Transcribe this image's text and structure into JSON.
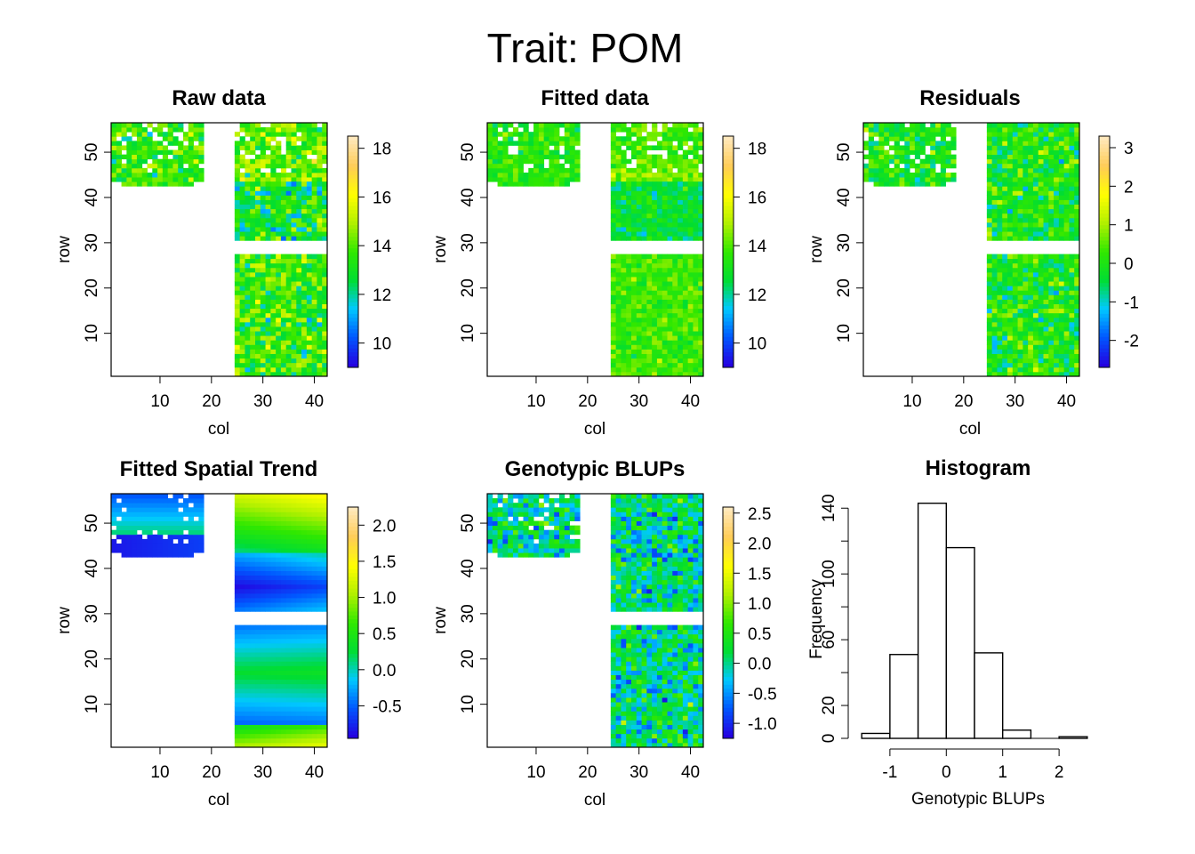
{
  "figure": {
    "title": "Trait: POM"
  },
  "chart_data": [
    {
      "type": "heatmap",
      "title": "Raw data",
      "xlabel": "col",
      "ylabel": "row",
      "xlim": [
        1,
        42
      ],
      "ylim": [
        1,
        56
      ],
      "xticks": [
        "10",
        "20",
        "30",
        "40"
      ],
      "yticks": [
        "10",
        "20",
        "30",
        "40",
        "50"
      ],
      "colorbar": {
        "range": [
          9,
          18.5
        ],
        "ticks": [
          "10",
          "12",
          "14",
          "16",
          "18"
        ],
        "tick_values": [
          10,
          12,
          14,
          16,
          18
        ]
      },
      "blocks": [
        {
          "cols": [
            1,
            18
          ],
          "rows": [
            43,
            56
          ],
          "base": 13.6,
          "trend": 0.0,
          "noise": 0.9
        },
        {
          "cols": [
            25,
            42
          ],
          "rows": [
            44,
            56
          ],
          "base": 14.3,
          "trend": 0.3,
          "noise": 1.0
        },
        {
          "cols": [
            25,
            42
          ],
          "rows": [
            31,
            43
          ],
          "base": 12.8,
          "trend": 0.0,
          "noise": 1.2
        },
        {
          "cols": [
            25,
            42
          ],
          "rows": [
            1,
            27
          ],
          "base": 13.7,
          "trend": 0.0,
          "noise": 1.1
        }
      ]
    },
    {
      "type": "heatmap",
      "title": "Fitted data",
      "xlabel": "col",
      "ylabel": "row",
      "xlim": [
        1,
        42
      ],
      "ylim": [
        1,
        56
      ],
      "xticks": [
        "10",
        "20",
        "30",
        "40"
      ],
      "yticks": [
        "10",
        "20",
        "30",
        "40",
        "50"
      ],
      "colorbar": {
        "range": [
          9,
          18.5
        ],
        "ticks": [
          "10",
          "12",
          "14",
          "16",
          "18"
        ],
        "tick_values": [
          10,
          12,
          14,
          16,
          18
        ]
      },
      "blocks": [
        {
          "cols": [
            1,
            18
          ],
          "rows": [
            43,
            56
          ],
          "base": 13.5,
          "trend": 0.0,
          "noise": 0.6
        },
        {
          "cols": [
            25,
            42
          ],
          "rows": [
            44,
            56
          ],
          "base": 14.2,
          "trend": 0.4,
          "noise": 0.6
        },
        {
          "cols": [
            25,
            42
          ],
          "rows": [
            31,
            43
          ],
          "base": 12.7,
          "trend": 0.0,
          "noise": 0.6
        },
        {
          "cols": [
            25,
            42
          ],
          "rows": [
            1,
            27
          ],
          "base": 13.8,
          "trend": 0.0,
          "noise": 0.6
        }
      ]
    },
    {
      "type": "heatmap",
      "title": "Residuals",
      "xlabel": "col",
      "ylabel": "row",
      "xlim": [
        1,
        42
      ],
      "ylim": [
        1,
        56
      ],
      "xticks": [
        "10",
        "20",
        "30",
        "40"
      ],
      "yticks": [
        "10",
        "20",
        "30",
        "40",
        "50"
      ],
      "colorbar": {
        "range": [
          -2.7,
          3.3
        ],
        "ticks": [
          "-2",
          "-1",
          "0",
          "1",
          "2",
          "3"
        ],
        "tick_values": [
          -2,
          -1,
          0,
          1,
          2,
          3
        ]
      },
      "blocks": [
        {
          "cols": [
            1,
            18
          ],
          "rows": [
            43,
            56
          ],
          "base": 0.0,
          "trend": 0.0,
          "noise": 0.55
        },
        {
          "cols": [
            25,
            42
          ],
          "rows": [
            31,
            56
          ],
          "base": 0.0,
          "trend": 0.0,
          "noise": 0.6
        },
        {
          "cols": [
            25,
            42
          ],
          "rows": [
            1,
            27
          ],
          "base": 0.0,
          "trend": 0.0,
          "noise": 0.6
        }
      ]
    },
    {
      "type": "heatmap",
      "title": "Fitted Spatial Trend",
      "xlabel": "col",
      "ylabel": "row",
      "xlim": [
        1,
        42
      ],
      "ylim": [
        1,
        56
      ],
      "xticks": [
        "10",
        "20",
        "30",
        "40"
      ],
      "yticks": [
        "10",
        "20",
        "30",
        "40",
        "50"
      ],
      "colorbar": {
        "range": [
          -0.95,
          2.25
        ],
        "ticks": [
          "-0.5",
          "0.0",
          "0.5",
          "1.0",
          "1.5",
          "2.0"
        ],
        "tick_values": [
          -0.5,
          0,
          0.5,
          1.0,
          1.5,
          2.0
        ]
      },
      "blocks": [
        {
          "cols": [
            1,
            18
          ],
          "rows": [
            43,
            56
          ],
          "base": -0.5,
          "trend": 0.0,
          "noise": 0.0
        },
        {
          "cols": [
            25,
            42
          ],
          "rows": [
            31,
            56
          ],
          "base": 0.0,
          "trend": 0.0,
          "noise": 0.0
        },
        {
          "cols": [
            25,
            42
          ],
          "rows": [
            1,
            27
          ],
          "base": 0.2,
          "trend": 0.0,
          "noise": 0.0
        }
      ]
    },
    {
      "type": "heatmap",
      "title": "Genotypic BLUPs",
      "xlabel": "col",
      "ylabel": "row",
      "xlim": [
        1,
        42
      ],
      "ylim": [
        1,
        56
      ],
      "xticks": [
        "10",
        "20",
        "30",
        "40"
      ],
      "yticks": [
        "10",
        "20",
        "30",
        "40",
        "50"
      ],
      "colorbar": {
        "range": [
          -1.25,
          2.6
        ],
        "ticks": [
          "-1.0",
          "-0.5",
          "0.0",
          "0.5",
          "1.0",
          "1.5",
          "2.0",
          "2.5"
        ],
        "tick_values": [
          -1.0,
          -0.5,
          0,
          0.5,
          1.0,
          1.5,
          2.0,
          2.5
        ]
      },
      "blocks": [
        {
          "cols": [
            1,
            18
          ],
          "rows": [
            43,
            56
          ],
          "base": 0.05,
          "trend": 0.0,
          "noise": 0.45
        },
        {
          "cols": [
            25,
            42
          ],
          "rows": [
            31,
            56
          ],
          "base": 0.05,
          "trend": 0.0,
          "noise": 0.45
        },
        {
          "cols": [
            25,
            42
          ],
          "rows": [
            1,
            27
          ],
          "base": 0.05,
          "trend": 0.0,
          "noise": 0.45
        }
      ]
    },
    {
      "type": "bar",
      "title": "Histogram",
      "xlabel": "Genotypic BLUPs",
      "ylabel": "Frequency",
      "bins": [
        -1.5,
        -1.0,
        -0.5,
        0.0,
        0.5,
        1.0,
        1.5,
        2.0,
        2.5
      ],
      "counts": [
        3,
        51,
        143,
        116,
        52,
        5,
        0,
        1
      ],
      "xticks": [
        "-1",
        "0",
        "1",
        "2"
      ],
      "xtick_values": [
        -1,
        0,
        1,
        2
      ],
      "yticks": [
        "0",
        "20",
        "60",
        "100",
        "140"
      ],
      "ytick_values": [
        0,
        20,
        60,
        100,
        140
      ],
      "xlim": [
        -1.55,
        2.55
      ],
      "ylim": [
        0,
        145
      ]
    }
  ],
  "palette": [
    "#2500e0",
    "#0057ff",
    "#00c8ff",
    "#00dd33",
    "#30e800",
    "#b0f000",
    "#ffff00",
    "#ffcc55",
    "#ffe8bb"
  ]
}
